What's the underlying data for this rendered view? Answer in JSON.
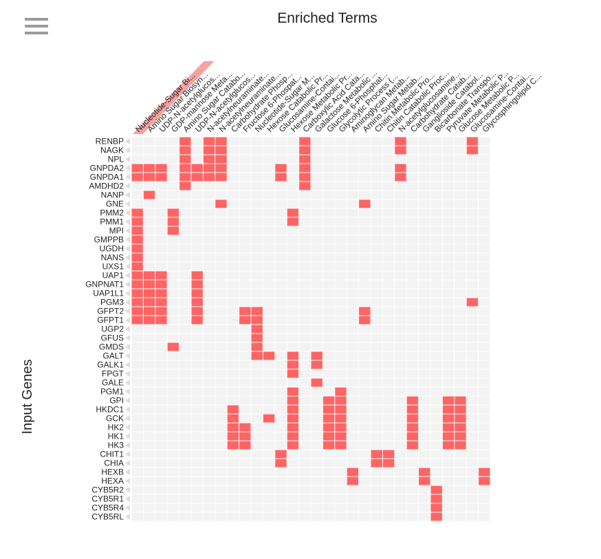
{
  "menu": {
    "icon": "hamburger-menu-icon"
  },
  "colors": {
    "hit": "#ff6464",
    "background": "#f3f3f3",
    "grid": "#ffffff",
    "text": "#222222",
    "highlight": "#f7a1a1",
    "arrow": "#dddddd"
  },
  "chart_data": {
    "type": "heatmap",
    "title": "Enriched Terms",
    "xlabel": "",
    "ylabel": "Input Genes",
    "columns": [
      "Nucleotide-Sugar Bi...",
      "Amino Sugar Biosyn...",
      "UDP-N-acetylglucos...",
      "GDP-mannose Meta...",
      "Amino Sugar Catabo...",
      "UDP-N-acetylglucos...",
      "N-acetylneuraminate...",
      "N-acetylneuraminate...",
      "Carbohydrate Phosp...",
      "Fructose 6-Phospat...",
      "Nucleotide-Sugar M...",
      "Hexose Catabolic Pr...",
      "Glucosamine-Contai...",
      "Hexose Metabolic Pr...",
      "Carboxylic Acid Cata...",
      "Galactose Metabolic ...",
      "Glucose 6-Phosphat...",
      "Glycolytic Process (...",
      "Aminoglycan Metab...",
      "Amino Sugar Metab...",
      "Chitin Metabolic Pro...",
      "Chitin Catabolic Proc...",
      "N-acetylglucosamine...",
      "Carbohydrate Catab...",
      "Ganglioside Catabol...",
      "Bicarbonate Transpo...",
      "Pyruvate Metabolic P...",
      "Glucose Metabolic P...",
      "Glucosamine-Contai...",
      "Glycosphingolipid C..."
    ],
    "highlighted_column": 0,
    "rows": [
      "RENBP",
      "NAGK",
      "NPL",
      "GNPDA2",
      "GNPDA1",
      "AMDHD2",
      "NANP",
      "GNE",
      "PMM2",
      "PMM1",
      "MPI",
      "GMPPB",
      "UGDH",
      "NANS",
      "UXS1",
      "UAP1",
      "GNPNAT1",
      "UAP1L1",
      "PGM3",
      "GFPT2",
      "GFPT1",
      "UGP2",
      "GFUS",
      "GMDS",
      "GALT",
      "GALK1",
      "FPGT",
      "GALE",
      "PGM1",
      "GPI",
      "HKDC1",
      "GCK",
      "HK2",
      "HK1",
      "HK3",
      "CHIT1",
      "CHIA",
      "HEXB",
      "HEXA",
      "CYB5R2",
      "CYB5R1",
      "CYB5R4",
      "CYB5RL"
    ],
    "hits": [
      [
        4,
        6,
        7,
        14,
        22,
        28
      ],
      [
        4,
        6,
        7,
        14,
        22,
        28
      ],
      [
        4,
        6,
        7,
        14
      ],
      [
        0,
        1,
        2,
        4,
        5,
        6,
        7,
        12,
        14,
        22
      ],
      [
        0,
        1,
        2,
        4,
        5,
        6,
        7,
        12,
        14,
        22
      ],
      [
        4,
        14
      ],
      [
        1
      ],
      [
        7,
        19
      ],
      [
        0,
        3,
        13
      ],
      [
        0,
        3,
        13
      ],
      [
        0,
        3
      ],
      [
        0
      ],
      [
        0
      ],
      [
        0
      ],
      [
        0
      ],
      [
        0,
        1,
        2,
        5
      ],
      [
        0,
        1,
        2,
        5
      ],
      [
        0,
        1,
        2,
        5
      ],
      [
        0,
        1,
        2,
        5,
        28
      ],
      [
        0,
        1,
        2,
        5,
        9,
        10,
        19
      ],
      [
        0,
        1,
        2,
        5,
        9,
        10,
        19
      ],
      [
        10
      ],
      [
        10
      ],
      [
        3,
        10
      ],
      [
        10,
        11,
        13,
        15
      ],
      [
        13,
        15
      ],
      [
        13
      ],
      [
        15
      ],
      [
        13,
        17
      ],
      [
        13,
        16,
        17,
        23,
        26,
        27
      ],
      [
        8,
        13,
        16,
        17,
        23,
        26,
        27
      ],
      [
        8,
        11,
        13,
        16,
        17,
        23,
        26,
        27
      ],
      [
        8,
        9,
        13,
        16,
        17,
        23,
        26,
        27
      ],
      [
        8,
        9,
        13,
        16,
        17,
        23,
        26,
        27
      ],
      [
        8,
        9,
        13,
        16,
        17,
        23,
        26,
        27
      ],
      [
        12,
        20,
        21
      ],
      [
        12,
        20,
        21
      ],
      [
        18,
        24,
        29
      ],
      [
        18,
        24,
        29
      ],
      [
        25
      ],
      [
        25
      ],
      [
        25
      ],
      [
        25
      ]
    ]
  }
}
